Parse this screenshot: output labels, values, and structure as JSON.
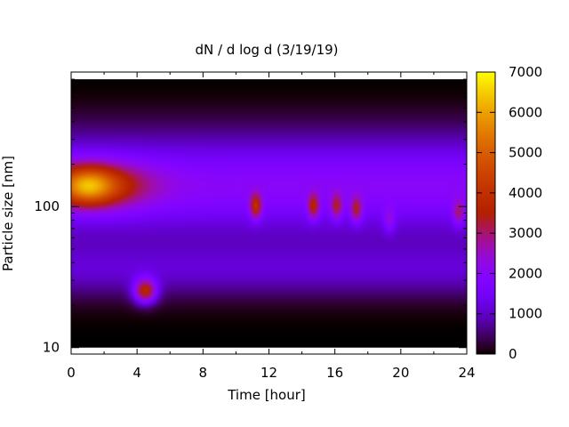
{
  "chart_data": {
    "type": "heatmap",
    "title": "dN / d log d (3/19/19)",
    "xlabel": "Time [hour]",
    "ylabel": "Particle size [nm]",
    "x_range": [
      0,
      24
    ],
    "y_range": [
      9,
      900
    ],
    "y_scale": "log",
    "x_ticks": [
      "0",
      "4",
      "8",
      "12",
      "16",
      "20",
      "24"
    ],
    "y_ticks": [
      "10",
      "100"
    ],
    "colorbar": {
      "range": [
        0,
        7000
      ],
      "ticks": [
        "0",
        "1000",
        "2000",
        "3000",
        "4000",
        "5000",
        "6000",
        "7000"
      ],
      "palette": "gnuplot (black-purple-red-orange-yellow)"
    },
    "features": [
      {
        "label": "burst",
        "time_h": 4.5,
        "size_nm": 25,
        "peak": 5200
      },
      {
        "label": "broad band",
        "time_h": 1.0,
        "size_nm": 140,
        "peak": 4300
      },
      {
        "label": "spot",
        "time_h": 11.2,
        "size_nm": 100,
        "peak": 4300
      },
      {
        "label": "spot",
        "time_h": 14.7,
        "size_nm": 100,
        "peak": 4000
      },
      {
        "label": "spot",
        "time_h": 16.1,
        "size_nm": 100,
        "peak": 3700
      },
      {
        "label": "spot",
        "time_h": 17.3,
        "size_nm": 95,
        "peak": 3800
      },
      {
        "label": "spot",
        "time_h": 19.3,
        "size_nm": 80,
        "peak": 3000
      },
      {
        "label": "spot",
        "time_h": 23.5,
        "size_nm": 90,
        "peak": 3500
      }
    ]
  }
}
